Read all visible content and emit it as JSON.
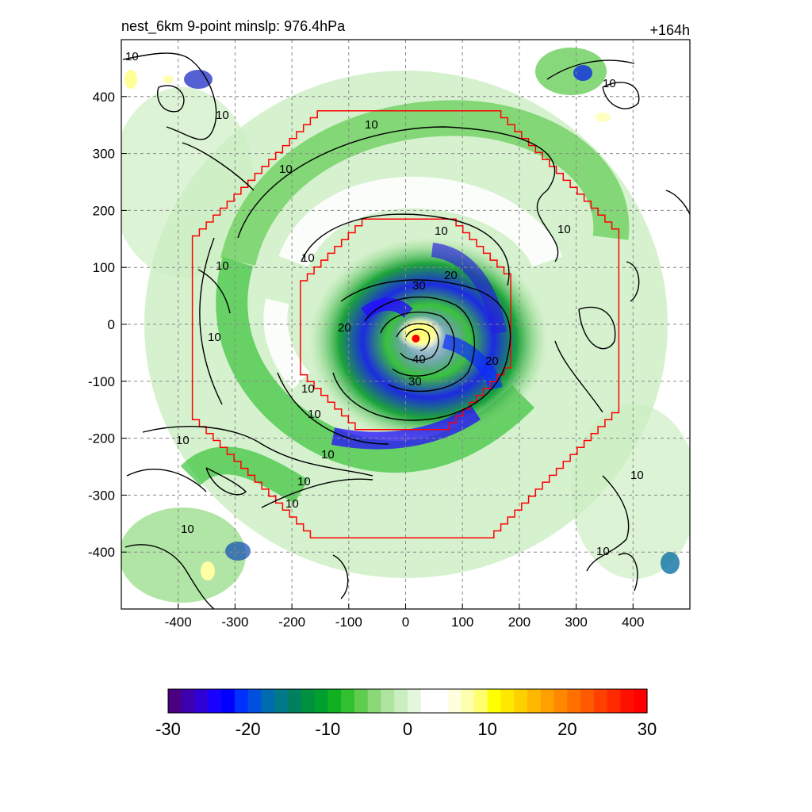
{
  "chart_data": {
    "type": "contour-map",
    "title": "nest_6km  9-point minslp: 976.4hPa",
    "time_label": "+164h",
    "xlim": [
      -500,
      500
    ],
    "ylim": [
      -500,
      500
    ],
    "x_ticks": [
      -400,
      -300,
      -200,
      -100,
      0,
      100,
      200,
      300,
      400
    ],
    "y_ticks": [
      400,
      300,
      200,
      100,
      0,
      -100,
      -200,
      -300,
      -400
    ],
    "grid": true,
    "grid_style": "dashed",
    "center_marker": {
      "x": 18,
      "y": -25,
      "color": "#ff0000"
    },
    "colorbar": {
      "min": -30,
      "max": 30,
      "tick_values": [
        -30,
        -20,
        -10,
        0,
        10,
        20,
        30
      ],
      "tick_labels": [
        "-30",
        "-20",
        "-10",
        "0",
        "10",
        "20",
        "30"
      ],
      "colors": [
        "#4b0082",
        "#3d00b0",
        "#2e00d8",
        "#1a00ff",
        "#0000ff",
        "#0030ff",
        "#0050e0",
        "#006ab0",
        "#007a88",
        "#008060",
        "#009040",
        "#00a030",
        "#10b020",
        "#30c030",
        "#60cc50",
        "#8ad878",
        "#aee3a0",
        "#cbeec0",
        "#e4f7dc",
        "#ffffff",
        "#ffffff",
        "#ffffe0",
        "#ffffb0",
        "#ffff70",
        "#ffff00",
        "#ffe800",
        "#ffd000",
        "#ffb800",
        "#ffa000",
        "#ff8800",
        "#ff7000",
        "#ff5a00",
        "#ff4000",
        "#ff2a00",
        "#ff1000",
        "#ff0000"
      ]
    },
    "contour_labels": [
      "10",
      "20",
      "30",
      "40"
    ],
    "red_boxes": [
      {
        "name": "outer-nest-boundary",
        "radius": 375
      },
      {
        "name": "inner-nest-boundary",
        "radius": 185
      }
    ]
  }
}
